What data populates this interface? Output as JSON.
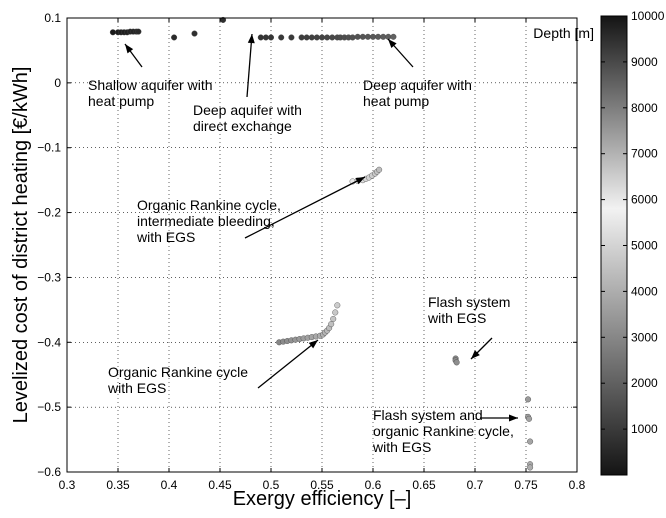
{
  "chart_data": {
    "type": "scatter",
    "xlabel": "Exergy efficiency [–]",
    "ylabel": "Levelized cost of district heating [€/kWh]",
    "xlim": [
      0.3,
      0.8
    ],
    "ylim": [
      -0.6,
      0.1
    ],
    "xticks": [
      "0.3",
      "0.35",
      "0.4",
      "0.45",
      "0.5",
      "0.55",
      "0.6",
      "0.65",
      "0.7",
      "0.75",
      "0.8"
    ],
    "yticks": [
      "0.1",
      "0",
      "−0.1",
      "−0.2",
      "−0.3",
      "−0.4",
      "−0.5",
      "−0.6"
    ],
    "grid": true,
    "colorbar": {
      "title": "Depth [m]",
      "range": [
        0,
        10000
      ],
      "ticks": [
        "1000",
        "2000",
        "3000",
        "4000",
        "5000",
        "6000",
        "7000",
        "8000",
        "9000",
        "10000"
      ],
      "colormap": "grayscale: low depth dark, mid depth light, high depth dark",
      "colors": {
        "low": "#141414",
        "mid": "#f2f2f2",
        "high": "#141414"
      }
    },
    "groups": [
      {
        "name": "Shallow aquifer with heat pump",
        "points": [
          [
            0.345,
            0.078,
            150
          ],
          [
            0.35,
            0.078,
            200
          ],
          [
            0.353,
            0.078,
            250
          ],
          [
            0.356,
            0.078,
            300
          ],
          [
            0.359,
            0.078,
            350
          ],
          [
            0.362,
            0.079,
            400
          ],
          [
            0.365,
            0.079,
            450
          ],
          [
            0.368,
            0.079,
            500
          ],
          [
            0.37,
            0.079,
            550
          ]
        ]
      },
      {
        "name": "Deep aquifer with direct exchange",
        "points": [
          [
            0.453,
            0.097,
            9500
          ]
        ]
      },
      {
        "name": "Deep aquifer with heat pump",
        "points": [
          [
            0.405,
            0.07,
            600
          ],
          [
            0.425,
            0.076,
            700
          ],
          [
            0.49,
            0.07,
            800
          ],
          [
            0.495,
            0.07,
            850
          ],
          [
            0.5,
            0.07,
            900
          ],
          [
            0.51,
            0.07,
            950
          ],
          [
            0.52,
            0.07,
            1000
          ],
          [
            0.53,
            0.07,
            1050
          ],
          [
            0.535,
            0.07,
            1100
          ],
          [
            0.54,
            0.07,
            1150
          ],
          [
            0.545,
            0.07,
            1200
          ],
          [
            0.55,
            0.07,
            1250
          ],
          [
            0.555,
            0.07,
            1300
          ],
          [
            0.56,
            0.07,
            1350
          ],
          [
            0.565,
            0.07,
            1400
          ],
          [
            0.568,
            0.07,
            1450
          ],
          [
            0.572,
            0.07,
            1500
          ],
          [
            0.576,
            0.07,
            1550
          ],
          [
            0.58,
            0.07,
            1600
          ],
          [
            0.585,
            0.071,
            1650
          ],
          [
            0.59,
            0.071,
            1700
          ],
          [
            0.595,
            0.071,
            1750
          ],
          [
            0.6,
            0.071,
            1800
          ],
          [
            0.605,
            0.071,
            1850
          ],
          [
            0.61,
            0.071,
            1900
          ],
          [
            0.615,
            0.071,
            1950
          ],
          [
            0.62,
            0.071,
            2000
          ]
        ]
      },
      {
        "name": "Organic Rankine cycle, intermediate bleeding, with EGS",
        "points": [
          [
            0.58,
            -0.152,
            6000
          ],
          [
            0.585,
            -0.151,
            6100
          ],
          [
            0.59,
            -0.15,
            6200
          ],
          [
            0.593,
            -0.148,
            6300
          ],
          [
            0.596,
            -0.146,
            6400
          ],
          [
            0.599,
            -0.143,
            6500
          ],
          [
            0.602,
            -0.14,
            6600
          ],
          [
            0.604,
            -0.137,
            6700
          ],
          [
            0.606,
            -0.134,
            6800
          ]
        ]
      },
      {
        "name": "Organic Rankine cycle with EGS",
        "points": [
          [
            0.508,
            -0.4,
            3000
          ],
          [
            0.512,
            -0.399,
            3100
          ],
          [
            0.516,
            -0.398,
            3200
          ],
          [
            0.52,
            -0.397,
            3300
          ],
          [
            0.524,
            -0.396,
            3400
          ],
          [
            0.528,
            -0.395,
            3500
          ],
          [
            0.532,
            -0.394,
            3600
          ],
          [
            0.536,
            -0.393,
            3700
          ],
          [
            0.54,
            -0.392,
            3800
          ],
          [
            0.544,
            -0.391,
            3900
          ],
          [
            0.548,
            -0.39,
            4000
          ],
          [
            0.551,
            -0.388,
            4100
          ],
          [
            0.553,
            -0.385,
            4200
          ],
          [
            0.555,
            -0.382,
            4300
          ],
          [
            0.557,
            -0.378,
            4400
          ],
          [
            0.559,
            -0.372,
            4500
          ],
          [
            0.561,
            -0.364,
            4600
          ],
          [
            0.563,
            -0.354,
            4700
          ],
          [
            0.565,
            -0.343,
            4800
          ]
        ]
      },
      {
        "name": "Flash system with EGS",
        "points": [
          [
            0.681,
            -0.425,
            3000
          ],
          [
            0.681,
            -0.428,
            3100
          ],
          [
            0.682,
            -0.431,
            3200
          ]
        ]
      },
      {
        "name": "Flash system and organic Rankine cycle, with EGS",
        "points": [
          [
            0.752,
            -0.488,
            3500
          ],
          [
            0.752,
            -0.515,
            3600
          ],
          [
            0.753,
            -0.518,
            3700
          ],
          [
            0.754,
            -0.553,
            3800
          ],
          [
            0.754,
            -0.588,
            3900
          ],
          [
            0.754,
            -0.593,
            4000
          ]
        ]
      }
    ],
    "annotations": [
      {
        "lines": [
          "Shallow aquifer with",
          "heat pump"
        ]
      },
      {
        "lines": [
          "Deep aquifer with",
          "direct exchange"
        ]
      },
      {
        "lines": [
          "Deep aquifer with",
          "heat pump"
        ]
      },
      {
        "lines": [
          "Organic Rankine cycle,",
          "intermediate bleeding,",
          "with EGS"
        ]
      },
      {
        "lines": [
          "Organic Rankine cycle",
          "with EGS"
        ]
      },
      {
        "lines": [
          "Flash system",
          "with EGS"
        ]
      },
      {
        "lines": [
          "Flash system and",
          "organic Rankine cycle,",
          "with EGS"
        ]
      }
    ]
  }
}
